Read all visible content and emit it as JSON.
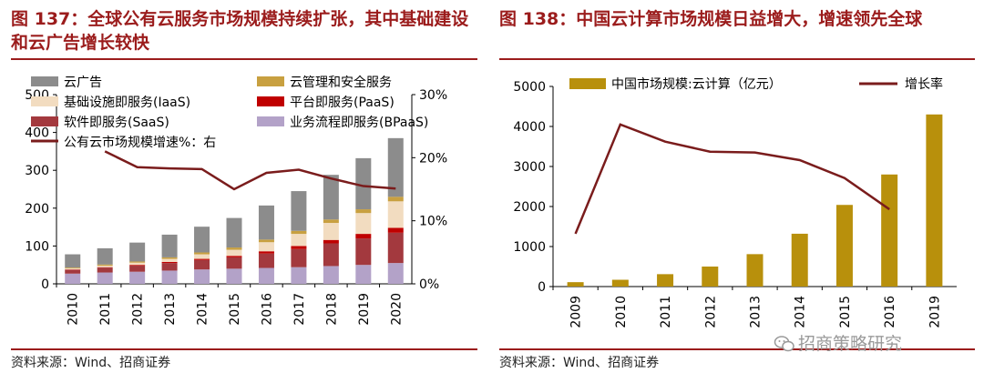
{
  "chart_data": [
    {
      "type": "bar",
      "title": "图 137：全球公有云服务市场规模持续扩张，其中基础建设和云广告增长较快",
      "categories": [
        "2010",
        "2011",
        "2012",
        "2013",
        "2014",
        "2015",
        "2016",
        "2017",
        "2018",
        "2019",
        "2020"
      ],
      "stacked": true,
      "ylim": [
        0,
        500
      ],
      "yticks": [
        "0",
        "100",
        "200",
        "300",
        "400",
        "500"
      ],
      "y2lim": [
        0,
        30
      ],
      "y2ticks": [
        "0%",
        "10%",
        "20%",
        "30%"
      ],
      "series": [
        {
          "name": "业务流程即服务(BPaaS)",
          "color": "#b3a2c8",
          "values": [
            27,
            30,
            32,
            35,
            38,
            40,
            42,
            44,
            47,
            50,
            55
          ]
        },
        {
          "name": "软件即服务(SaaS)",
          "color": "#a3393e",
          "values": [
            10,
            13,
            16,
            20,
            25,
            30,
            38,
            48,
            60,
            70,
            80
          ]
        },
        {
          "name": "平台即服务(PaaS)",
          "color": "#c00000",
          "values": [
            1,
            1,
            2,
            3,
            3,
            4,
            6,
            8,
            9,
            12,
            13
          ]
        },
        {
          "name": "基础设施即服务(IaaS)",
          "color": "#f2dcc0",
          "values": [
            3,
            4,
            6,
            8,
            12,
            16,
            24,
            32,
            45,
            55,
            70
          ]
        },
        {
          "name": "云管理和安全服务",
          "color": "#c8a040",
          "values": [
            2,
            3,
            3,
            4,
            5,
            6,
            7,
            8,
            9,
            10,
            12
          ]
        },
        {
          "name": "云广告",
          "color": "#8c8c8c",
          "values": [
            35,
            43,
            50,
            60,
            68,
            78,
            90,
            105,
            118,
            135,
            155
          ]
        }
      ],
      "line": {
        "name": "公有云市场规模增速%：右",
        "color": "#7a1c1c",
        "axis": "right",
        "values": [
          null,
          21,
          18.5,
          18.3,
          18.2,
          15,
          17.6,
          18.1,
          16.7,
          15.5,
          15.1
        ]
      },
      "legend": [
        {
          "label": "云广告",
          "color": "#8c8c8c",
          "kind": "bar"
        },
        {
          "label": "云管理和安全服务",
          "color": "#c8a040",
          "kind": "bar"
        },
        {
          "label": "基础设施即服务(IaaS)",
          "color": "#f2dcc0",
          "kind": "bar"
        },
        {
          "label": "平台即服务(PaaS)",
          "color": "#c00000",
          "kind": "bar"
        },
        {
          "label": "软件即服务(SaaS)",
          "color": "#a3393e",
          "kind": "bar"
        },
        {
          "label": "业务流程即服务(BPaaS)",
          "color": "#b3a2c8",
          "kind": "bar"
        },
        {
          "label": "公有云市场规模增速%：右",
          "color": "#7a1c1c",
          "kind": "line"
        }
      ],
      "source": "资料来源：Wind、招商证券"
    },
    {
      "type": "bar",
      "title": "图 138：中国云计算市场规模日益增大，增速领先全球",
      "categories": [
        "2009",
        "2010",
        "2011",
        "2012",
        "2013",
        "2014",
        "2015",
        "2016",
        "2019"
      ],
      "ylim": [
        0,
        5000
      ],
      "yticks": [
        "0",
        "1000",
        "2000",
        "3000",
        "4000",
        "5000"
      ],
      "series": [
        {
          "name": "中国市场规模:云计算（亿元）",
          "color": "#b8900c",
          "values": [
            110,
            170,
            310,
            500,
            810,
            1320,
            2040,
            2800,
            4300
          ]
        }
      ],
      "line": {
        "name": "增长率",
        "color": "#7a1c1c",
        "values": [
          1320,
          4050,
          3620,
          3370,
          3350,
          3160,
          2710,
          1930,
          null
        ]
      },
      "legend": [
        {
          "label": "中国市场规模:云计算（亿元）",
          "color": "#b8900c",
          "kind": "bar"
        },
        {
          "label": "增长率",
          "color": "#7a1c1c",
          "kind": "line"
        }
      ],
      "source": "资料来源：Wind、招商证券"
    }
  ],
  "watermark": "招商策略研究"
}
